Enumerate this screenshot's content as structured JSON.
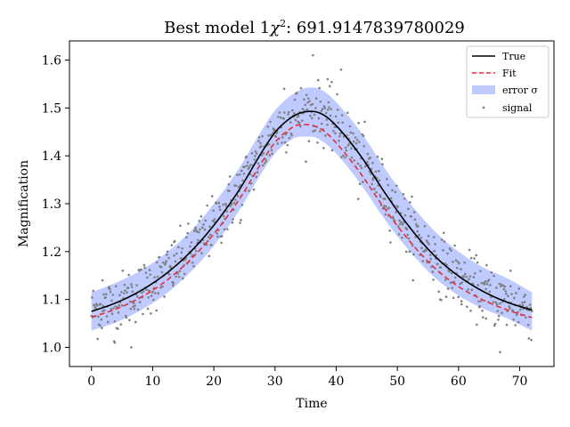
{
  "chart_data": {
    "type": "line",
    "title_prefix": "Best model 1",
    "title_chi": "χ",
    "title_sup": "2",
    "title_suffix": ": 691.9147839780029",
    "xlabel": "Time",
    "ylabel": "Magnification",
    "xlim": [
      -3.6,
      75.6
    ],
    "ylim": [
      0.96,
      1.64
    ],
    "xticks": [
      0,
      10,
      20,
      30,
      40,
      50,
      60,
      70
    ],
    "yticks": [
      1.0,
      1.1,
      1.2,
      1.3,
      1.4,
      1.5,
      1.6
    ],
    "ytick_labels": [
      "1.0",
      "1.1",
      "1.2",
      "1.3",
      "1.4",
      "1.5",
      "1.6"
    ],
    "grid": false,
    "legend_position": "top-right",
    "colors": {
      "true": "#000000",
      "fit": "#e0323c",
      "band": "#bfcaff",
      "signal": "#808080"
    },
    "series": [
      {
        "name": "True",
        "style": "solid",
        "x": [
          0,
          4,
          8,
          12,
          16,
          20,
          24,
          28,
          30,
          32,
          34,
          36,
          38,
          40,
          44,
          48,
          52,
          56,
          60,
          64,
          68,
          72
        ],
        "y": [
          1.075,
          1.093,
          1.118,
          1.152,
          1.197,
          1.255,
          1.326,
          1.411,
          1.449,
          1.474,
          1.489,
          1.493,
          1.485,
          1.463,
          1.4,
          1.322,
          1.251,
          1.192,
          1.149,
          1.117,
          1.094,
          1.078
        ]
      },
      {
        "name": "Fit",
        "style": "dashed",
        "x": [
          0,
          4,
          8,
          12,
          16,
          20,
          24,
          28,
          30,
          32,
          34,
          36,
          38,
          40,
          44,
          48,
          52,
          56,
          60,
          64,
          68,
          72
        ],
        "y": [
          1.063,
          1.08,
          1.104,
          1.137,
          1.181,
          1.237,
          1.306,
          1.39,
          1.428,
          1.452,
          1.465,
          1.464,
          1.452,
          1.427,
          1.363,
          1.288,
          1.222,
          1.167,
          1.127,
          1.099,
          1.078,
          1.062
        ]
      }
    ],
    "band": {
      "name": "error σ",
      "x": [
        0,
        4,
        8,
        12,
        16,
        20,
        24,
        28,
        30,
        32,
        34,
        36,
        38,
        40,
        44,
        48,
        52,
        56,
        60,
        64,
        68,
        72
      ],
      "lower": [
        1.035,
        1.052,
        1.077,
        1.11,
        1.155,
        1.212,
        1.283,
        1.368,
        1.405,
        1.428,
        1.44,
        1.44,
        1.428,
        1.405,
        1.341,
        1.266,
        1.201,
        1.147,
        1.108,
        1.081,
        1.06,
        1.035
      ],
      "upper": [
        1.115,
        1.135,
        1.16,
        1.195,
        1.24,
        1.3,
        1.372,
        1.457,
        1.495,
        1.52,
        1.537,
        1.543,
        1.535,
        1.512,
        1.45,
        1.373,
        1.302,
        1.244,
        1.2,
        1.167,
        1.144,
        1.115
      ]
    },
    "signal": {
      "name": "signal",
      "n": 720,
      "x_range": [
        0,
        72
      ],
      "noise_sd": 0.03,
      "outliers": [
        [
          36.2,
          1.61
        ],
        [
          40.8,
          1.58
        ],
        [
          31.5,
          1.54
        ],
        [
          38.6,
          1.56
        ],
        [
          46.0,
          1.35
        ],
        [
          52.0,
          1.2
        ],
        [
          60.5,
          1.09
        ],
        [
          64.5,
          1.06
        ],
        [
          66.8,
          0.99
        ],
        [
          6.5,
          1.0
        ],
        [
          3.8,
          1.01
        ],
        [
          13.5,
          1.22
        ],
        [
          17.0,
          1.25
        ],
        [
          24.3,
          1.26
        ],
        [
          43.6,
          1.31
        ],
        [
          57.0,
          1.1
        ],
        [
          68.5,
          1.16
        ],
        [
          1.8,
          1.14
        ]
      ]
    }
  }
}
